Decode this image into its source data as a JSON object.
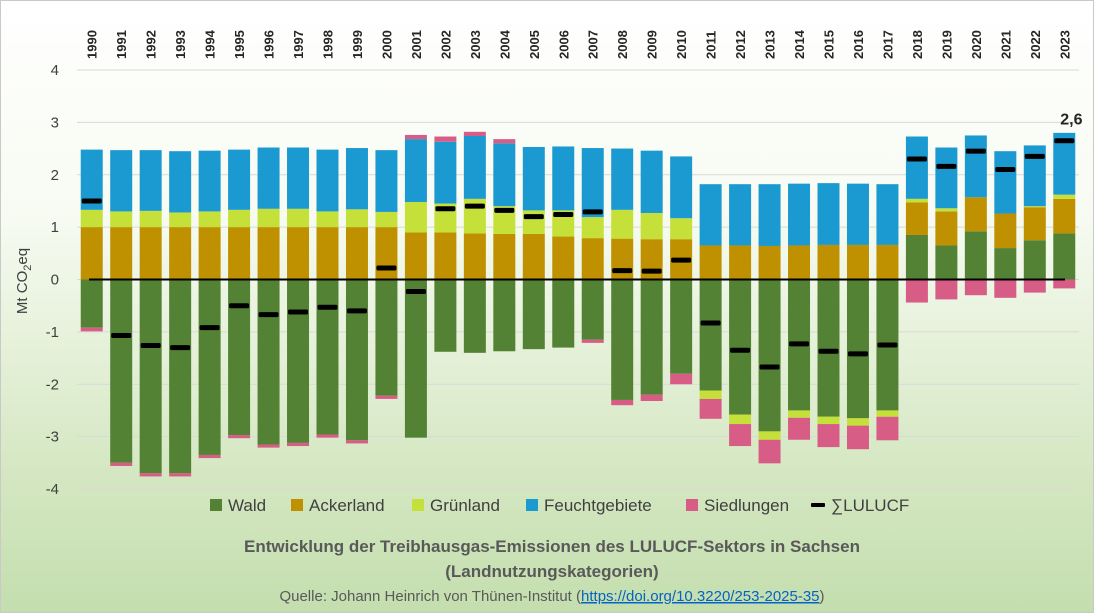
{
  "chart_data": {
    "type": "bar",
    "stacked": true,
    "title_line1": "Entwicklung der Treibhausgas-Emissionen des LULUCF-Sektors in Sachsen",
    "title_line2": "(Landnutzungskategorien)",
    "source_prefix": "Quelle: Johann Heinrich von Thünen-Institut (",
    "source_link": "https://doi.org/10.3220/253-2025-35",
    "source_suffix": ")",
    "ylabel": "Mt CO",
    "ylabel_sub": "2",
    "ylabel_suffix": "eq",
    "ylim": [
      -4,
      4
    ],
    "yticks": [
      4,
      3,
      2,
      1,
      0,
      -1,
      -2,
      -3,
      -4
    ],
    "ytick_labels": [
      "4",
      "3",
      "2",
      "1",
      "0",
      "-1",
      "-2",
      "-3",
      "-4"
    ],
    "categories": [
      "1990",
      "1991",
      "1992",
      "1993",
      "1994",
      "1995",
      "1996",
      "1997",
      "1998",
      "1999",
      "2000",
      "2001",
      "2002",
      "2003",
      "2004",
      "2005",
      "2006",
      "2007",
      "2008",
      "2009",
      "2010",
      "2011",
      "2012",
      "2013",
      "2014",
      "2015",
      "2016",
      "2017",
      "2018",
      "2019",
      "2020",
      "2021",
      "2022",
      "2023"
    ],
    "series": [
      {
        "name": "Wald",
        "color": "#548235",
        "values": [
          -0.92,
          -3.5,
          -3.7,
          -3.7,
          -3.35,
          -2.97,
          -3.15,
          -3.12,
          -2.96,
          -3.07,
          -2.22,
          -3.02,
          -1.38,
          -1.4,
          -1.37,
          -1.33,
          -1.3,
          -1.15,
          -2.3,
          -2.2,
          -1.8,
          -2.12,
          -2.58,
          -2.9,
          -2.5,
          -2.62,
          -2.65,
          -2.5,
          0.85,
          0.65,
          0.92,
          0.6,
          0.75,
          0.88
        ]
      },
      {
        "name": "Ackerland",
        "color": "#bf9000",
        "values": [
          1.0,
          1.0,
          1.0,
          1.0,
          1.0,
          1.0,
          1.0,
          1.0,
          1.0,
          1.0,
          1.0,
          0.9,
          0.9,
          0.88,
          0.87,
          0.87,
          0.82,
          0.79,
          0.78,
          0.77,
          0.77,
          0.65,
          0.65,
          0.64,
          0.65,
          0.66,
          0.66,
          0.66,
          0.62,
          0.65,
          0.65,
          0.66,
          0.63,
          0.66
        ]
      },
      {
        "name": "Grünland",
        "color": "#c6e03a",
        "values": [
          0.33,
          0.3,
          0.31,
          0.28,
          0.3,
          0.33,
          0.35,
          0.35,
          0.3,
          0.34,
          0.29,
          0.58,
          0.55,
          0.66,
          0.53,
          0.45,
          0.5,
          0.4,
          0.55,
          0.5,
          0.4,
          -0.16,
          -0.18,
          -0.16,
          -0.14,
          -0.14,
          -0.14,
          -0.12,
          0.07,
          0.06,
          0.0,
          0.0,
          0.02,
          0.08
        ]
      },
      {
        "name": "Feuchtgebiete",
        "color": "#1b9ad1",
        "values": [
          1.15,
          1.17,
          1.16,
          1.17,
          1.16,
          1.15,
          1.17,
          1.17,
          1.18,
          1.17,
          1.18,
          1.2,
          1.18,
          1.2,
          1.2,
          1.21,
          1.22,
          1.32,
          1.17,
          1.19,
          1.18,
          1.17,
          1.17,
          1.18,
          1.18,
          1.18,
          1.17,
          1.16,
          1.19,
          1.16,
          1.18,
          1.19,
          1.16,
          1.18
        ]
      },
      {
        "name": "Siedlungen",
        "color": "#d75d87",
        "values": [
          -0.07,
          -0.06,
          -0.06,
          -0.06,
          -0.06,
          -0.06,
          -0.06,
          -0.06,
          -0.06,
          -0.06,
          -0.06,
          0.08,
          0.1,
          0.08,
          0.08,
          0.0,
          0.0,
          -0.06,
          -0.1,
          -0.12,
          -0.2,
          -0.38,
          -0.42,
          -0.45,
          -0.42,
          -0.44,
          -0.45,
          -0.45,
          -0.44,
          -0.38,
          -0.3,
          -0.35,
          -0.25,
          -0.17
        ]
      }
    ],
    "total": {
      "name": "∑LULUCF",
      "color": "#000000",
      "values": [
        1.5,
        -1.07,
        -1.26,
        -1.3,
        -0.92,
        -0.5,
        -0.67,
        -0.62,
        -0.53,
        -0.6,
        0.22,
        -0.23,
        1.35,
        1.4,
        1.32,
        1.2,
        1.24,
        1.29,
        0.17,
        0.16,
        0.37,
        -0.83,
        -1.35,
        -1.67,
        -1.23,
        -1.37,
        -1.42,
        -1.25,
        2.3,
        2.16,
        2.45,
        2.1,
        2.35,
        2.65
      ]
    },
    "annotation": {
      "category": "2023",
      "text": "2,6"
    },
    "legend_position": "bottom",
    "grid": true
  }
}
